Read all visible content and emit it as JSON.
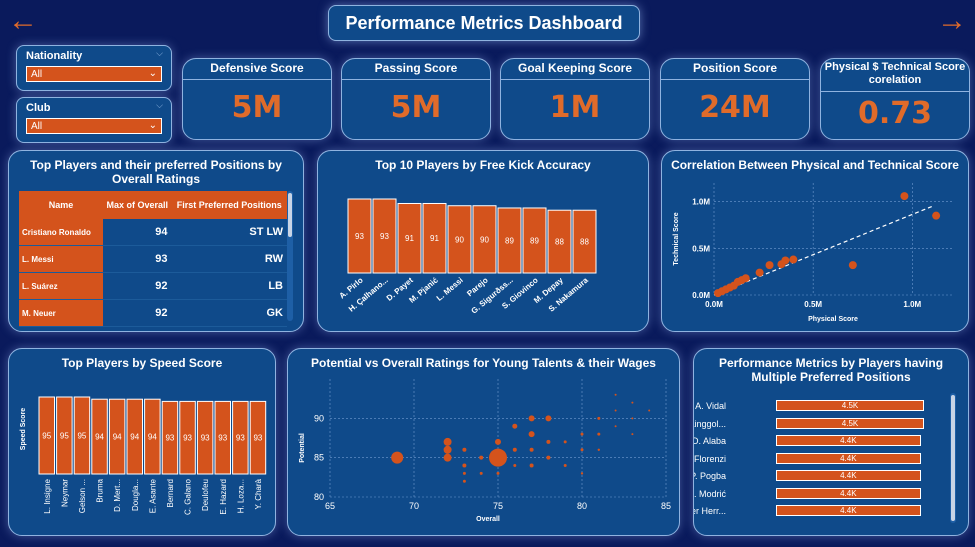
{
  "header": {
    "title": "Performance Metrics Dashboard",
    "back_icon": "arrow-left-icon",
    "forward_icon": "arrow-right-icon"
  },
  "filters": {
    "nationality": {
      "label": "Nationality",
      "value": "All"
    },
    "club": {
      "label": "Club",
      "value": "All"
    }
  },
  "kpis": [
    {
      "title": "Defensive Score",
      "value": "5M"
    },
    {
      "title": "Passing Score",
      "value": "5M"
    },
    {
      "title": "Goal Keeping Score",
      "value": "1M"
    },
    {
      "title": "Position Score",
      "value": "24M"
    },
    {
      "title": "Physical $ Technical Score corelation",
      "value": "0.73"
    }
  ],
  "top_players_table": {
    "title": "Top Players and their preferred Positions by Overall Ratings",
    "columns": [
      "Name",
      "Max of Overall",
      "First Preferred Positions"
    ],
    "rows": [
      {
        "name": "Cristiano Ronaldo",
        "overall": "94",
        "positions": "ST LW"
      },
      {
        "name": "L. Messi",
        "overall": "93",
        "positions": "RW"
      },
      {
        "name": "L. Suárez",
        "overall": "92",
        "positions": "LB"
      },
      {
        "name": "M. Neuer",
        "overall": "92",
        "positions": "GK"
      }
    ]
  },
  "free_kick": {
    "title": "Top 10 Players by Free Kick Accuracy",
    "chart_data": {
      "type": "bar",
      "categories": [
        "A. Pirlo",
        "H. Çalhano...",
        "D. Payet",
        "M. Pjanić",
        "L. Messi",
        "Parejo",
        "G. Sigurðss...",
        "S. Giovinco",
        "M. Depay",
        "S. Nakamura"
      ],
      "values": [
        93,
        93,
        91,
        91,
        90,
        90,
        89,
        89,
        88,
        88
      ],
      "color": "#d4531c"
    }
  },
  "correlation": {
    "title": "Correlation Between Physical and Technical Score",
    "chart_data": {
      "type": "scatter",
      "xlabel": "Physical Score",
      "ylabel": "Technical Score",
      "xlim": [
        0,
        1200000
      ],
      "ylim": [
        0,
        1200000
      ],
      "xticks": [
        "0.0M",
        "0.5M",
        "1.0M"
      ],
      "yticks": [
        "0.0M",
        "0.5M",
        "1.0M"
      ],
      "points": [
        {
          "x": 20000,
          "y": 20000
        },
        {
          "x": 40000,
          "y": 40000
        },
        {
          "x": 60000,
          "y": 60000
        },
        {
          "x": 80000,
          "y": 80000
        },
        {
          "x": 100000,
          "y": 100000
        },
        {
          "x": 120000,
          "y": 140000
        },
        {
          "x": 140000,
          "y": 160000
        },
        {
          "x": 160000,
          "y": 180000
        },
        {
          "x": 230000,
          "y": 240000
        },
        {
          "x": 280000,
          "y": 320000
        },
        {
          "x": 340000,
          "y": 330000
        },
        {
          "x": 360000,
          "y": 370000
        },
        {
          "x": 400000,
          "y": 380000
        },
        {
          "x": 700000,
          "y": 320000
        },
        {
          "x": 960000,
          "y": 1060000
        },
        {
          "x": 1120000,
          "y": 850000
        }
      ],
      "trendline": [
        [
          0,
          0
        ],
        [
          1100000,
          950000
        ]
      ],
      "color": "#d4531c"
    }
  },
  "speed": {
    "title": "Top Players by Speed Score",
    "chart_data": {
      "type": "bar",
      "ylabel": "Speed Score",
      "categories": [
        "L. Insigne",
        "Neymar",
        "Gelson ...",
        "Bruma",
        "D. Mert...",
        "Dougla...",
        "E. Asante",
        "Bernard",
        "C. Galano",
        "Deulofeu",
        "E. Hazard",
        "H. Loza...",
        "Y. Charà"
      ],
      "values": [
        95,
        95,
        95,
        94,
        94,
        94,
        94,
        93,
        93,
        93,
        93,
        93,
        93
      ],
      "color": "#d4531c"
    }
  },
  "young_talents": {
    "title": "Potential vs Overall Ratings for Young Talents & their Wages",
    "chart_data": {
      "type": "scatter",
      "xlabel": "Overall",
      "ylabel": "Potential",
      "xlim": [
        65,
        85
      ],
      "ylim": [
        80,
        95
      ],
      "xticks": [
        65,
        70,
        75,
        80,
        85
      ],
      "yticks": [
        80,
        85,
        90
      ],
      "points": [
        {
          "x": 69,
          "y": 85,
          "size": 6
        },
        {
          "x": 75,
          "y": 85,
          "size": 9
        },
        {
          "x": 72,
          "y": 87,
          "size": 4
        },
        {
          "x": 72,
          "y": 86,
          "size": 4
        },
        {
          "x": 72,
          "y": 85,
          "size": 4
        },
        {
          "x": 73,
          "y": 84,
          "size": 2
        },
        {
          "x": 73,
          "y": 86,
          "size": 2
        },
        {
          "x": 74,
          "y": 85,
          "size": 2
        },
        {
          "x": 74,
          "y": 83,
          "size": 1.5
        },
        {
          "x": 73,
          "y": 83,
          "size": 1.5
        },
        {
          "x": 73,
          "y": 82,
          "size": 1.5
        },
        {
          "x": 75,
          "y": 87,
          "size": 3
        },
        {
          "x": 76,
          "y": 86,
          "size": 2
        },
        {
          "x": 76,
          "y": 89,
          "size": 2.5
        },
        {
          "x": 77,
          "y": 88,
          "size": 3
        },
        {
          "x": 77,
          "y": 86,
          "size": 2
        },
        {
          "x": 77,
          "y": 84,
          "size": 2
        },
        {
          "x": 77,
          "y": 90,
          "size": 3
        },
        {
          "x": 78,
          "y": 90,
          "size": 3
        },
        {
          "x": 78,
          "y": 87,
          "size": 2
        },
        {
          "x": 78,
          "y": 85,
          "size": 2
        },
        {
          "x": 79,
          "y": 87,
          "size": 1.5
        },
        {
          "x": 79,
          "y": 84,
          "size": 1.5
        },
        {
          "x": 80,
          "y": 88,
          "size": 1.5
        },
        {
          "x": 80,
          "y": 86,
          "size": 1.5
        },
        {
          "x": 81,
          "y": 90,
          "size": 1.5
        },
        {
          "x": 81,
          "y": 88,
          "size": 1.5
        },
        {
          "x": 82,
          "y": 93,
          "size": 1
        },
        {
          "x": 82,
          "y": 91,
          "size": 1
        },
        {
          "x": 82,
          "y": 89,
          "size": 1
        },
        {
          "x": 83,
          "y": 92,
          "size": 1
        },
        {
          "x": 83,
          "y": 90,
          "size": 1
        },
        {
          "x": 83,
          "y": 88,
          "size": 1
        },
        {
          "x": 84,
          "y": 91,
          "size": 1
        },
        {
          "x": 80,
          "y": 83,
          "size": 1.2
        },
        {
          "x": 81,
          "y": 86,
          "size": 1.2
        },
        {
          "x": 76,
          "y": 84,
          "size": 1.5
        },
        {
          "x": 75,
          "y": 83,
          "size": 1.5
        }
      ],
      "color": "#d4531c"
    }
  },
  "multi_positions": {
    "title": "Performance Metrics by Players having Multiple Preferred Positions",
    "chart_data": {
      "type": "bar",
      "orientation": "horizontal",
      "categories": [
        "A. Vidal",
        "R. Nainggol...",
        "D. Alaba",
        "A. Florenzi",
        "P. Pogba",
        "L. Modrić",
        "Ander Herr..."
      ],
      "values": [
        4500,
        4500,
        4400,
        4400,
        4400,
        4400,
        4400
      ],
      "labels": [
        "4.5K",
        "4.5K",
        "4.4K",
        "4.4K",
        "4.4K",
        "4.4K",
        "4.4K"
      ],
      "color": "#d4531c"
    }
  }
}
